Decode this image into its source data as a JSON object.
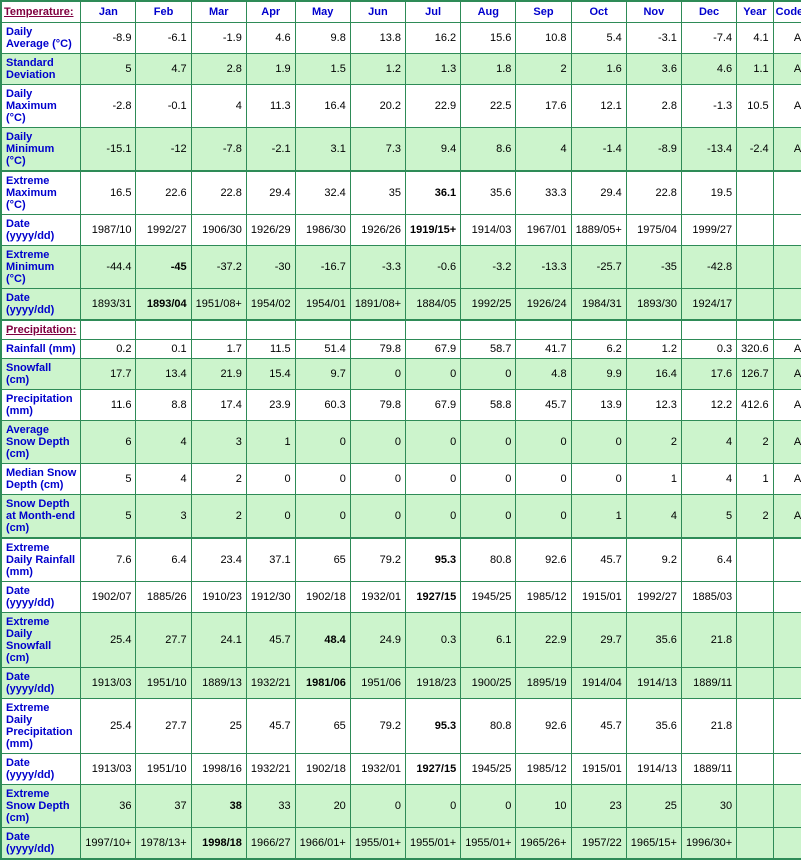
{
  "headers": [
    "Temperature:",
    "Jan",
    "Feb",
    "Mar",
    "Apr",
    "May",
    "Jun",
    "Jul",
    "Aug",
    "Sep",
    "Oct",
    "Nov",
    "Dec",
    "Year",
    "Code"
  ],
  "temperature_rows": [
    {
      "label": "Daily Average (°C)",
      "shaded": false,
      "values": [
        "-8.9",
        "-6.1",
        "-1.9",
        "4.6",
        "9.8",
        "13.8",
        "16.2",
        "15.6",
        "10.8",
        "5.4",
        "-3.1",
        "-7.4",
        "4.1",
        "A"
      ]
    },
    {
      "label": "Standard Deviation",
      "shaded": true,
      "values": [
        "5",
        "4.7",
        "2.8",
        "1.9",
        "1.5",
        "1.2",
        "1.3",
        "1.8",
        "2",
        "1.6",
        "3.6",
        "4.6",
        "1.1",
        "A"
      ]
    },
    {
      "label": "Daily Maximum (°C)",
      "shaded": false,
      "values": [
        "-2.8",
        "-0.1",
        "4",
        "11.3",
        "16.4",
        "20.2",
        "22.9",
        "22.5",
        "17.6",
        "12.1",
        "2.8",
        "-1.3",
        "10.5",
        "A"
      ]
    },
    {
      "label": "Daily Minimum (°C)",
      "shaded": true,
      "thickBottom": true,
      "values": [
        "-15.1",
        "-12",
        "-7.8",
        "-2.1",
        "3.1",
        "7.3",
        "9.4",
        "8.6",
        "4",
        "-1.4",
        "-8.9",
        "-13.4",
        "-2.4",
        "A"
      ]
    },
    {
      "label": "Extreme Maximum (°C)",
      "shaded": false,
      "thickTop": true,
      "values": [
        "16.5",
        "22.6",
        "22.8",
        "29.4",
        "32.4",
        "35",
        "36.1",
        "35.6",
        "33.3",
        "29.4",
        "22.8",
        "19.5",
        "",
        ""
      ],
      "bold": [
        6
      ]
    },
    {
      "label": "Date (yyyy/dd)",
      "shaded": false,
      "values": [
        "1987/10",
        "1992/27",
        "1906/30",
        "1926/29",
        "1986/30",
        "1926/26",
        "1919/15+",
        "1914/03",
        "1967/01",
        "1889/05+",
        "1975/04",
        "1999/27",
        "",
        ""
      ],
      "bold": [
        6
      ]
    },
    {
      "label": "Extreme Minimum (°C)",
      "shaded": true,
      "values": [
        "-44.4",
        "-45",
        "-37.2",
        "-30",
        "-16.7",
        "-3.3",
        "-0.6",
        "-3.2",
        "-13.3",
        "-25.7",
        "-35",
        "-42.8",
        "",
        ""
      ],
      "bold": [
        1
      ]
    },
    {
      "label": "Date (yyyy/dd)",
      "shaded": true,
      "thickBottom": true,
      "values": [
        "1893/31",
        "1893/04",
        "1951/08+",
        "1954/02",
        "1954/01",
        "1891/08+",
        "1884/05",
        "1992/25",
        "1926/24",
        "1984/31",
        "1893/30",
        "1924/17",
        "",
        ""
      ],
      "bold": [
        1
      ]
    }
  ],
  "precip_section": "Precipitation:",
  "precip_rows": [
    {
      "label": "Rainfall (mm)",
      "shaded": false,
      "values": [
        "0.2",
        "0.1",
        "1.7",
        "11.5",
        "51.4",
        "79.8",
        "67.9",
        "58.7",
        "41.7",
        "6.2",
        "1.2",
        "0.3",
        "320.6",
        "A"
      ]
    },
    {
      "label": "Snowfall (cm)",
      "shaded": true,
      "values": [
        "17.7",
        "13.4",
        "21.9",
        "15.4",
        "9.7",
        "0",
        "0",
        "0",
        "4.8",
        "9.9",
        "16.4",
        "17.6",
        "126.7",
        "A"
      ]
    },
    {
      "label": "Precipitation (mm)",
      "shaded": false,
      "values": [
        "11.6",
        "8.8",
        "17.4",
        "23.9",
        "60.3",
        "79.8",
        "67.9",
        "58.8",
        "45.7",
        "13.9",
        "12.3",
        "12.2",
        "412.6",
        "A"
      ]
    },
    {
      "label": "Average Snow Depth (cm)",
      "shaded": true,
      "values": [
        "6",
        "4",
        "3",
        "1",
        "0",
        "0",
        "0",
        "0",
        "0",
        "0",
        "2",
        "4",
        "2",
        "A"
      ]
    },
    {
      "label": "Median Snow Depth (cm)",
      "shaded": false,
      "values": [
        "5",
        "4",
        "2",
        "0",
        "0",
        "0",
        "0",
        "0",
        "0",
        "0",
        "1",
        "4",
        "1",
        "A"
      ]
    },
    {
      "label": "Snow Depth at Month-end (cm)",
      "shaded": true,
      "thickBottom": true,
      "values": [
        "5",
        "3",
        "2",
        "0",
        "0",
        "0",
        "0",
        "0",
        "0",
        "1",
        "4",
        "5",
        "2",
        "A"
      ]
    },
    {
      "label": "Extreme Daily Rainfall (mm)",
      "shaded": false,
      "thickTop": true,
      "values": [
        "7.6",
        "6.4",
        "23.4",
        "37.1",
        "65",
        "79.2",
        "95.3",
        "80.8",
        "92.6",
        "45.7",
        "9.2",
        "6.4",
        "",
        ""
      ],
      "bold": [
        6
      ]
    },
    {
      "label": "Date (yyyy/dd)",
      "shaded": false,
      "values": [
        "1902/07",
        "1885/26",
        "1910/23",
        "1912/30",
        "1902/18",
        "1932/01",
        "1927/15",
        "1945/25",
        "1985/12",
        "1915/01",
        "1992/27",
        "1885/03",
        "",
        ""
      ],
      "bold": [
        6
      ]
    },
    {
      "label": "Extreme Daily Snowfall (cm)",
      "shaded": true,
      "values": [
        "25.4",
        "27.7",
        "24.1",
        "45.7",
        "48.4",
        "24.9",
        "0.3",
        "6.1",
        "22.9",
        "29.7",
        "35.6",
        "21.8",
        "",
        ""
      ],
      "bold": [
        4
      ]
    },
    {
      "label": "Date (yyyy/dd)",
      "shaded": true,
      "values": [
        "1913/03",
        "1951/10",
        "1889/13",
        "1932/21",
        "1981/06",
        "1951/06",
        "1918/23",
        "1900/25",
        "1895/19",
        "1914/04",
        "1914/13",
        "1889/11",
        "",
        ""
      ],
      "bold": [
        4
      ]
    },
    {
      "label": "Extreme Daily Precipitation (mm)",
      "shaded": false,
      "values": [
        "25.4",
        "27.7",
        "25",
        "45.7",
        "65",
        "79.2",
        "95.3",
        "80.8",
        "92.6",
        "45.7",
        "35.6",
        "21.8",
        "",
        ""
      ],
      "bold": [
        6
      ]
    },
    {
      "label": "Date (yyyy/dd)",
      "shaded": false,
      "values": [
        "1913/03",
        "1951/10",
        "1998/16",
        "1932/21",
        "1902/18",
        "1932/01",
        "1927/15",
        "1945/25",
        "1985/12",
        "1915/01",
        "1914/13",
        "1889/11",
        "",
        ""
      ],
      "bold": [
        6
      ]
    },
    {
      "label": "Extreme Snow Depth (cm)",
      "shaded": true,
      "values": [
        "36",
        "37",
        "38",
        "33",
        "20",
        "0",
        "0",
        "0",
        "10",
        "23",
        "25",
        "30",
        "",
        ""
      ],
      "bold": [
        2
      ]
    },
    {
      "label": "Date (yyyy/dd)",
      "shaded": true,
      "values": [
        "1997/10+",
        "1978/13+",
        "1998/18",
        "1966/27",
        "1966/01+",
        "1955/01+",
        "1955/01+",
        "1955/01+",
        "1965/26+",
        "1957/22",
        "1965/15+",
        "1996/30+",
        "",
        ""
      ],
      "bold": [
        2
      ]
    }
  ]
}
